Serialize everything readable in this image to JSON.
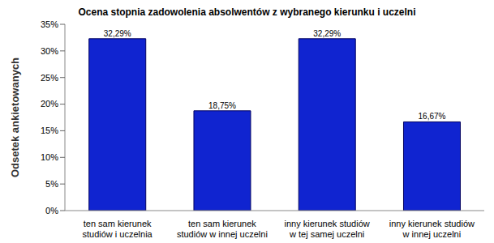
{
  "chart_data": {
    "type": "bar",
    "title": "Ocena stopnia zadowolenia absolwentów z wybranego kierunku i uczelni",
    "y_label": "Odsetek ankietowanych",
    "categories": [
      "ten sam kierunek studiów i uczelnia",
      "ten sam kierunek studiów w innej uczelni",
      "inny kierunek studiów w tej samej uczelni",
      "inny kierunek studiów w innej uczelni"
    ],
    "values": [
      32.29,
      18.75,
      32.29,
      16.67
    ],
    "value_labels": [
      "32,29%",
      "18,75%",
      "32,29%",
      "16,67%"
    ],
    "color": "#1024d0",
    "ylim": [
      0,
      35
    ],
    "yticks": [
      {
        "value": 0,
        "label": "0%"
      },
      {
        "value": 5,
        "label": "5%"
      },
      {
        "value": 10,
        "label": "10%"
      },
      {
        "value": 15,
        "label": "15%"
      },
      {
        "value": 20,
        "label": "20%"
      },
      {
        "value": 25,
        "label": "25%"
      },
      {
        "value": 30,
        "label": "30%"
      },
      {
        "value": 35,
        "label": "35%"
      }
    ],
    "grid": false,
    "data_labels": true
  }
}
